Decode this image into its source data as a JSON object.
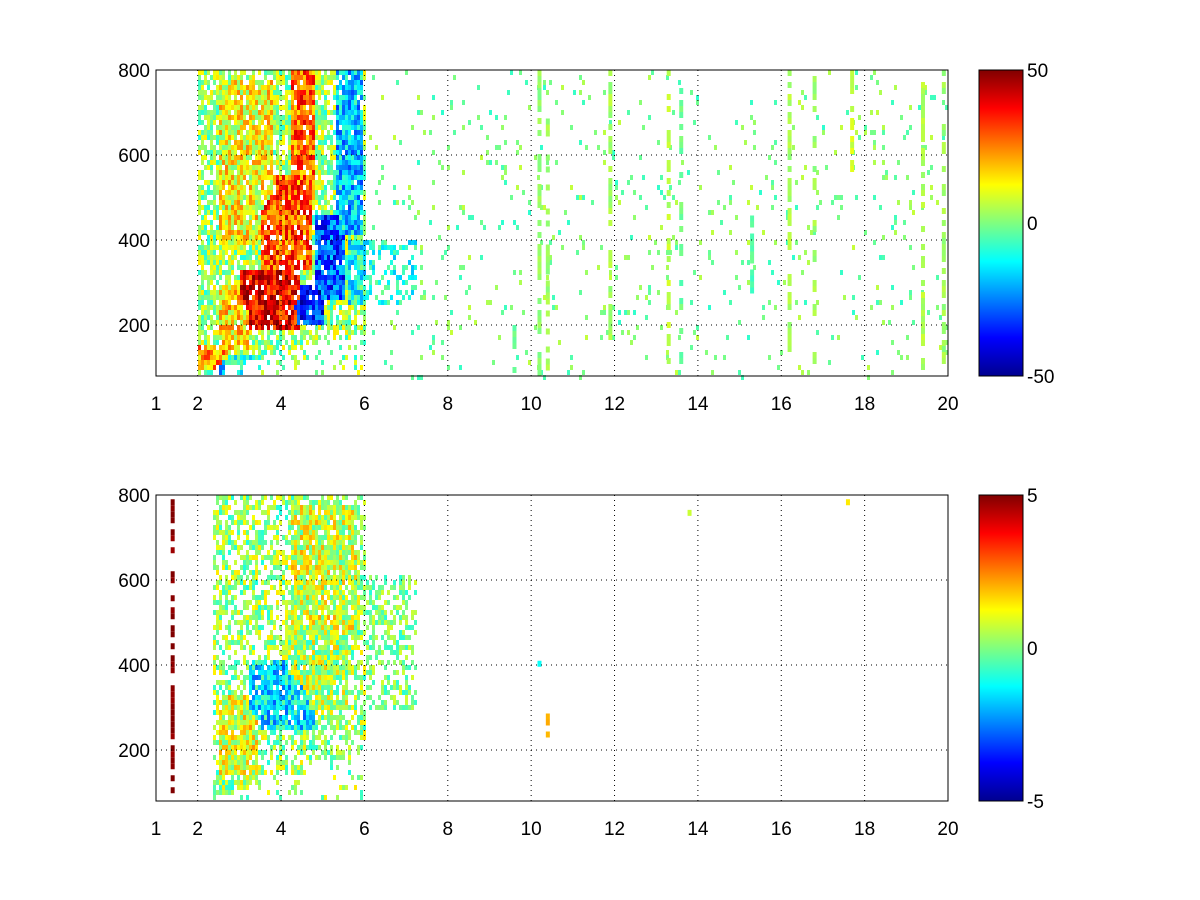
{
  "chart_data": [
    {
      "type": "heatmap",
      "x_ticks": [
        1,
        2,
        4,
        6,
        8,
        10,
        12,
        14,
        16,
        18,
        20
      ],
      "y_ticks": [
        200,
        400,
        600,
        800
      ],
      "xlim": [
        1,
        20
      ],
      "ylim": [
        80,
        800
      ],
      "grid": true,
      "colorbar": {
        "clim": [
          -50,
          50
        ],
        "tick_labels": [
          "50",
          "0",
          "-50"
        ],
        "colormap": "jet"
      },
      "dense_region": {
        "x_range": [
          2.0,
          6.0
        ],
        "y_range": [
          90,
          800
        ]
      },
      "tail_region": {
        "x_range": [
          5.7,
          7.2
        ],
        "y_range": [
          250,
          400
        ]
      },
      "features": [
        {
          "x": [
            2.0,
            2.7
          ],
          "y": [
            100,
            160
          ],
          "value": 22
        },
        {
          "x": [
            2.5,
            3.2
          ],
          "y": [
            150,
            300
          ],
          "value": 15
        },
        {
          "x": [
            3.0,
            4.4
          ],
          "y": [
            200,
            340
          ],
          "value": 38
        },
        {
          "x": [
            3.5,
            4.7
          ],
          "y": [
            340,
            560
          ],
          "value": 30
        },
        {
          "x": [
            4.2,
            4.8
          ],
          "y": [
            500,
            800
          ],
          "value": 28
        },
        {
          "x": [
            2.5,
            3.8
          ],
          "y": [
            400,
            780
          ],
          "value": 12
        },
        {
          "x": [
            4.3,
            5.0
          ],
          "y": [
            210,
            300
          ],
          "value": -35
        },
        {
          "x": [
            4.8,
            5.5
          ],
          "y": [
            260,
            460
          ],
          "value": -30
        },
        {
          "x": [
            5.3,
            5.9
          ],
          "y": [
            420,
            800
          ],
          "value": -18
        },
        {
          "x": [
            2.2,
            3.5
          ],
          "y": [
            90,
            130
          ],
          "value": -15
        },
        {
          "x": [
            5.6,
            7.2
          ],
          "y": [
            250,
            400
          ],
          "value": -10
        }
      ],
      "streaks": [
        {
          "x": 9.6,
          "y": [
            90,
            200
          ],
          "value": -2
        },
        {
          "x": 10.2,
          "y": [
            90,
            800
          ],
          "value": 2
        },
        {
          "x": 10.4,
          "y": [
            100,
            700
          ],
          "value": 3
        },
        {
          "x": 11.9,
          "y": [
            100,
            800
          ],
          "value": 4
        },
        {
          "x": 13.3,
          "y": [
            100,
            800
          ],
          "value": 6
        },
        {
          "x": 13.6,
          "y": [
            100,
            800
          ],
          "value": -2
        },
        {
          "x": 15.3,
          "y": [
            270,
            500
          ],
          "value": -4
        },
        {
          "x": 16.2,
          "y": [
            100,
            800
          ],
          "value": 4
        },
        {
          "x": 16.8,
          "y": [
            100,
            800
          ],
          "value": 3
        },
        {
          "x": 17.7,
          "y": [
            560,
            800
          ],
          "value": 8
        },
        {
          "x": 19.4,
          "y": [
            100,
            800
          ],
          "value": 5
        },
        {
          "x": 19.9,
          "y": [
            100,
            800
          ],
          "value": 3
        }
      ]
    },
    {
      "type": "heatmap",
      "x_ticks": [
        1,
        2,
        4,
        6,
        8,
        10,
        12,
        14,
        16,
        18,
        20
      ],
      "y_ticks": [
        200,
        400,
        600,
        800
      ],
      "xlim": [
        1,
        20
      ],
      "ylim": [
        80,
        800
      ],
      "grid": true,
      "colorbar": {
        "clim": [
          -5,
          5
        ],
        "tick_labels": [
          "5",
          "0",
          "-5"
        ],
        "colormap": "jet"
      },
      "dense_region": {
        "x_range": [
          2.3,
          6.0
        ],
        "y_range": [
          90,
          800
        ]
      },
      "tail_region": {
        "x_range": [
          6.0,
          7.2
        ],
        "y_range": [
          300,
          620
        ]
      },
      "features": [
        {
          "x": [
            3.2,
            4.8
          ],
          "y": [
            250,
            420
          ],
          "value": -1.5
        },
        {
          "x": [
            4.0,
            5.6
          ],
          "y": [
            300,
            480
          ],
          "value": 0.5
        },
        {
          "x": [
            2.5,
            3.4
          ],
          "y": [
            150,
            330
          ],
          "value": 1.0
        },
        {
          "x": [
            2.4,
            3.5
          ],
          "y": [
            90,
            140
          ],
          "value": 0.3
        },
        {
          "x": [
            4.2,
            5.8
          ],
          "y": [
            480,
            780
          ],
          "value": 0.8
        }
      ],
      "streaks": [
        {
          "x": 1.4,
          "y": [
            90,
            790
          ],
          "value": 5
        },
        {
          "x": 10.2,
          "y": [
            400,
            410
          ],
          "value": -1
        },
        {
          "x": 10.4,
          "y": [
            230,
            300
          ],
          "value": 2
        },
        {
          "x": 13.8,
          "y": [
            755,
            765
          ],
          "value": 0.5
        },
        {
          "x": 17.6,
          "y": [
            730,
            790
          ],
          "value": 1.5
        }
      ]
    }
  ]
}
